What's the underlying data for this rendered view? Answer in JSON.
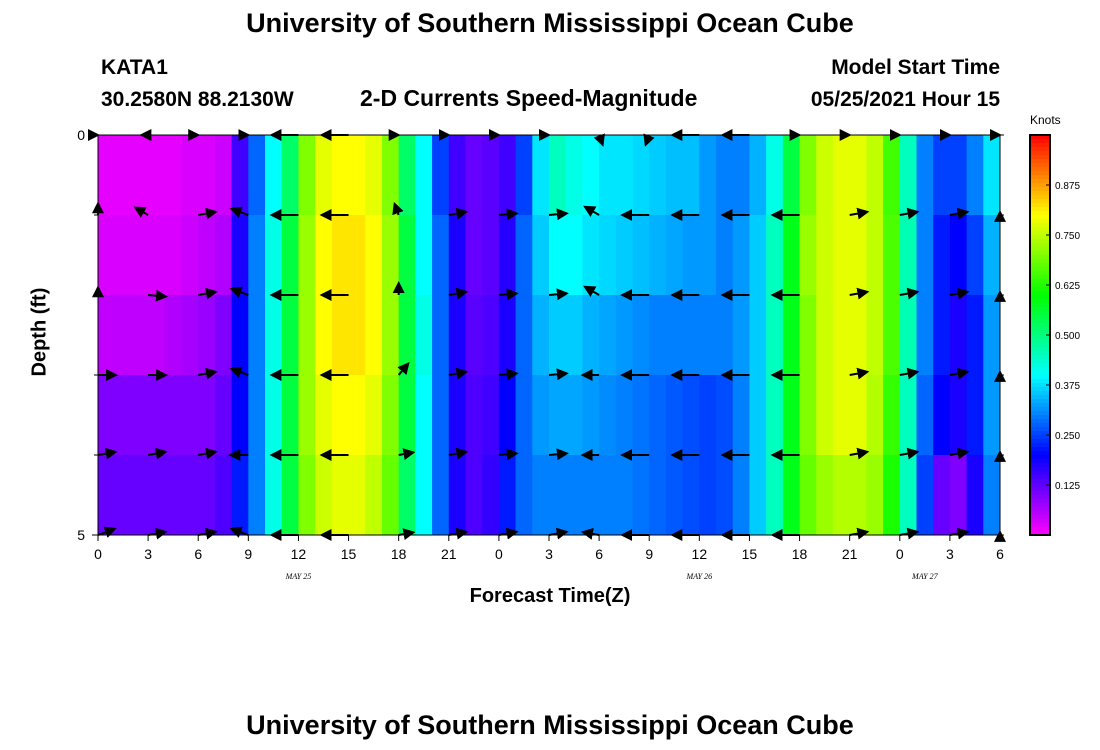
{
  "title": "University of Southern Mississippi Ocean Cube",
  "footer_title": "University of Southern Mississippi Ocean Cube",
  "station": {
    "id": "KATA1",
    "coords": "30.2580N  88.2130W"
  },
  "model": {
    "label": "Model Start Time",
    "time": "05/25/2021 Hour 15"
  },
  "chart_data": {
    "type": "heatmap",
    "title": "2-D Currents Speed-Magnitude",
    "xlabel": "Forecast Time(Z)",
    "ylabel": "Depth (ft)",
    "x_ticks": [
      "0",
      "3",
      "6",
      "9",
      "12",
      "15",
      "18",
      "21",
      "0",
      "3",
      "6",
      "9",
      "12",
      "15",
      "18",
      "21",
      "0",
      "3",
      "6"
    ],
    "date_labels": [
      {
        "text": "MAY 25",
        "at_tick": 4
      },
      {
        "text": "MAY 26",
        "at_tick": 12
      },
      {
        "text": "MAY 27",
        "at_tick": 16.5
      }
    ],
    "y_ticks": [
      "0",
      "5"
    ],
    "ylim": [
      0,
      5
    ],
    "colorbar": {
      "unit": "Knots",
      "range": [
        0,
        1.0
      ],
      "ticks": [
        "0.125",
        "0.250",
        "0.375",
        "0.500",
        "0.625",
        "0.750",
        "0.875"
      ]
    },
    "hours": [
      0,
      1,
      2,
      3,
      4,
      5,
      6,
      7,
      8,
      9,
      10,
      11,
      12,
      13,
      14,
      15,
      16,
      17,
      18,
      19,
      20,
      21,
      22,
      23,
      24,
      25,
      26,
      27,
      28,
      29,
      30,
      31,
      32,
      33,
      34,
      35,
      36,
      37,
      38,
      39,
      40,
      41,
      42,
      43,
      44,
      45,
      46,
      47,
      48,
      49,
      50,
      51,
      52,
      53,
      54
    ],
    "depth_rows": 5,
    "speed_knots": [
      [
        0.02,
        0.02,
        0.02,
        0.02,
        0.02,
        0.03,
        0.03,
        0.04,
        0.15,
        0.28,
        0.4,
        0.52,
        0.7,
        0.78,
        0.8,
        0.8,
        0.78,
        0.7,
        0.52,
        0.4,
        0.25,
        0.15,
        0.12,
        0.13,
        0.15,
        0.25,
        0.38,
        0.45,
        0.42,
        0.4,
        0.38,
        0.38,
        0.37,
        0.36,
        0.35,
        0.35,
        0.32,
        0.3,
        0.3,
        0.34,
        0.42,
        0.55,
        0.7,
        0.76,
        0.78,
        0.78,
        0.75,
        0.65,
        0.45,
        0.3,
        0.25,
        0.25,
        0.3,
        0.38,
        0.42
      ],
      [
        0.03,
        0.03,
        0.03,
        0.03,
        0.03,
        0.04,
        0.05,
        0.06,
        0.18,
        0.3,
        0.42,
        0.55,
        0.72,
        0.8,
        0.82,
        0.82,
        0.8,
        0.72,
        0.55,
        0.4,
        0.28,
        0.18,
        0.12,
        0.13,
        0.17,
        0.28,
        0.36,
        0.4,
        0.4,
        0.38,
        0.37,
        0.36,
        0.35,
        0.34,
        0.33,
        0.32,
        0.32,
        0.3,
        0.32,
        0.36,
        0.45,
        0.58,
        0.72,
        0.76,
        0.78,
        0.78,
        0.75,
        0.66,
        0.46,
        0.3,
        0.22,
        0.2,
        0.25,
        0.34,
        0.42
      ],
      [
        0.05,
        0.05,
        0.05,
        0.05,
        0.06,
        0.07,
        0.08,
        0.1,
        0.2,
        0.3,
        0.42,
        0.55,
        0.72,
        0.8,
        0.82,
        0.82,
        0.8,
        0.72,
        0.55,
        0.42,
        0.28,
        0.18,
        0.13,
        0.14,
        0.18,
        0.28,
        0.34,
        0.36,
        0.36,
        0.34,
        0.33,
        0.32,
        0.31,
        0.3,
        0.3,
        0.3,
        0.3,
        0.3,
        0.32,
        0.36,
        0.45,
        0.58,
        0.7,
        0.76,
        0.78,
        0.78,
        0.75,
        0.66,
        0.46,
        0.3,
        0.22,
        0.18,
        0.22,
        0.32,
        0.4
      ],
      [
        0.1,
        0.1,
        0.1,
        0.1,
        0.1,
        0.1,
        0.1,
        0.12,
        0.2,
        0.3,
        0.42,
        0.55,
        0.72,
        0.78,
        0.8,
        0.8,
        0.78,
        0.7,
        0.55,
        0.4,
        0.28,
        0.18,
        0.14,
        0.15,
        0.2,
        0.28,
        0.32,
        0.33,
        0.33,
        0.32,
        0.31,
        0.3,
        0.29,
        0.28,
        0.27,
        0.26,
        0.25,
        0.26,
        0.3,
        0.36,
        0.45,
        0.58,
        0.7,
        0.76,
        0.78,
        0.78,
        0.74,
        0.64,
        0.45,
        0.28,
        0.2,
        0.18,
        0.22,
        0.32,
        0.4
      ],
      [
        0.12,
        0.12,
        0.12,
        0.12,
        0.12,
        0.12,
        0.12,
        0.14,
        0.22,
        0.3,
        0.42,
        0.55,
        0.7,
        0.76,
        0.78,
        0.78,
        0.75,
        0.68,
        0.52,
        0.4,
        0.28,
        0.18,
        0.14,
        0.16,
        0.22,
        0.28,
        0.3,
        0.3,
        0.3,
        0.3,
        0.3,
        0.3,
        0.29,
        0.28,
        0.27,
        0.26,
        0.25,
        0.26,
        0.3,
        0.36,
        0.45,
        0.58,
        0.68,
        0.72,
        0.74,
        0.74,
        0.72,
        0.62,
        0.45,
        0.25,
        0.12,
        0.1,
        0.18,
        0.3,
        0.38
      ]
    ],
    "vector_hours": [
      0,
      3,
      6,
      9,
      12,
      15,
      18,
      21,
      24,
      27,
      30,
      33,
      36,
      39,
      42,
      45,
      48,
      51,
      54
    ],
    "vector_depths": [
      0,
      1,
      2,
      3,
      4,
      5
    ],
    "vectors": [
      [
        [
          300,
          0.35
        ],
        [
          330,
          0.45
        ],
        [
          360,
          0.3
        ],
        [
          360,
          0.3
        ],
        [
          270,
          0.9
        ],
        [
          270,
          0.9
        ],
        [
          360,
          0.3
        ],
        [
          360,
          0.3
        ],
        [
          360,
          0.3
        ],
        [
          360,
          0.3
        ],
        [
          160,
          0.35
        ],
        [
          200,
          0.35
        ],
        [
          270,
          0.9
        ],
        [
          270,
          0.9
        ],
        [
          360,
          0.3
        ],
        [
          360,
          0.3
        ],
        [
          360,
          0.3
        ],
        [
          360,
          0.3
        ],
        [
          360,
          0.3
        ]
      ],
      [
        [
          330,
          0.45
        ],
        [
          300,
          0.5
        ],
        [
          80,
          0.6
        ],
        [
          290,
          0.6
        ],
        [
          270,
          0.9
        ],
        [
          270,
          0.9
        ],
        [
          340,
          0.4
        ],
        [
          80,
          0.6
        ],
        [
          85,
          0.6
        ],
        [
          85,
          0.6
        ],
        [
          300,
          0.55
        ],
        [
          270,
          0.9
        ],
        [
          270,
          0.9
        ],
        [
          270,
          0.9
        ],
        [
          270,
          0.9
        ],
        [
          80,
          0.6
        ],
        [
          80,
          0.6
        ],
        [
          80,
          0.6
        ],
        [
          80,
          0.6
        ]
      ],
      [
        [
          310,
          0.4
        ],
        [
          95,
          0.6
        ],
        [
          80,
          0.6
        ],
        [
          290,
          0.6
        ],
        [
          270,
          0.9
        ],
        [
          270,
          0.9
        ],
        [
          360,
          0.4
        ],
        [
          80,
          0.6
        ],
        [
          85,
          0.6
        ],
        [
          85,
          0.6
        ],
        [
          300,
          0.55
        ],
        [
          270,
          0.9
        ],
        [
          270,
          0.9
        ],
        [
          270,
          0.9
        ],
        [
          270,
          0.9
        ],
        [
          80,
          0.6
        ],
        [
          80,
          0.6
        ],
        [
          80,
          0.6
        ],
        [
          80,
          0.6
        ]
      ],
      [
        [
          90,
          0.6
        ],
        [
          90,
          0.6
        ],
        [
          80,
          0.6
        ],
        [
          290,
          0.6
        ],
        [
          270,
          0.9
        ],
        [
          270,
          0.9
        ],
        [
          40,
          0.5
        ],
        [
          80,
          0.6
        ],
        [
          85,
          0.6
        ],
        [
          85,
          0.6
        ],
        [
          270,
          0.55
        ],
        [
          270,
          0.9
        ],
        [
          270,
          0.9
        ],
        [
          270,
          0.9
        ],
        [
          270,
          0.9
        ],
        [
          80,
          0.6
        ],
        [
          80,
          0.6
        ],
        [
          80,
          0.6
        ],
        [
          80,
          0.6
        ]
      ],
      [
        [
          80,
          0.6
        ],
        [
          80,
          0.6
        ],
        [
          80,
          0.6
        ],
        [
          270,
          0.6
        ],
        [
          270,
          0.9
        ],
        [
          270,
          0.9
        ],
        [
          80,
          0.5
        ],
        [
          80,
          0.6
        ],
        [
          85,
          0.6
        ],
        [
          85,
          0.6
        ],
        [
          270,
          0.55
        ],
        [
          270,
          0.9
        ],
        [
          270,
          0.9
        ],
        [
          270,
          0.9
        ],
        [
          270,
          0.9
        ],
        [
          80,
          0.6
        ],
        [
          80,
          0.6
        ],
        [
          80,
          0.6
        ],
        [
          80,
          0.6
        ]
      ],
      [
        [
          70,
          0.6
        ],
        [
          80,
          0.6
        ],
        [
          80,
          0.6
        ],
        [
          290,
          0.6
        ],
        [
          270,
          0.9
        ],
        [
          270,
          0.9
        ],
        [
          80,
          0.5
        ],
        [
          80,
          0.6
        ],
        [
          80,
          0.6
        ],
        [
          80,
          0.6
        ],
        [
          280,
          0.55
        ],
        [
          270,
          0.9
        ],
        [
          270,
          0.9
        ],
        [
          270,
          0.9
        ],
        [
          270,
          0.9
        ],
        [
          80,
          0.6
        ],
        [
          80,
          0.6
        ],
        [
          80,
          0.6
        ],
        [
          80,
          0.6
        ]
      ]
    ]
  }
}
